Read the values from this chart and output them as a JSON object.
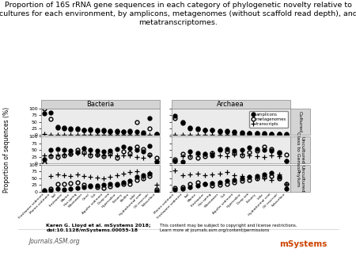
{
  "title": "Proportion of 16S rRNA gene sequences in each category of phylogenetic novelty relative to\ncultures for each environment, by amplicons, metagenomes (without scaffold read depth), and\nmetatranscriptomes.",
  "title_fontsize": 6.8,
  "ylabel": "Proportion of sequences (%)",
  "col_headers": [
    "Bacteria",
    "Archaea"
  ],
  "row_headers": [
    "Cultured",
    "Uncultured\nClass to Genus",
    "Uncultured\nPhylum"
  ],
  "ylim": [
    0,
    100
  ],
  "yticks": [
    0,
    25,
    50,
    75,
    100
  ],
  "bacteria_xtick_labels": [
    "Freshwater sediment",
    "Marine sediment",
    "Soil",
    "Freshwater",
    "Marine",
    "Hot spring",
    "Wastewater",
    "Coral",
    "Gut",
    "Aquifer sediment",
    "Deep sea",
    "Hypersaline",
    "Estuary",
    "Biofilm",
    "Lake",
    "Hydrothermal vent",
    "Oil reservoir",
    "Subsurface"
  ],
  "archaea_xtick_labels": [
    "Marine sediment",
    "Freshwater sediment",
    "Soil",
    "Marine",
    "Freshwater",
    "Hot spring",
    "Wastewater",
    "Gut",
    "Aquifer sediment",
    "Hypersaline",
    "Deep sea",
    "Estuary",
    "Lake",
    "Hydrothermal vent",
    "Oil reservoir",
    "Subsurface"
  ],
  "bacteria_cultured_amplicons": [
    82,
    85,
    27,
    25,
    24,
    22,
    20,
    20,
    18,
    17,
    15,
    14,
    14,
    13,
    12,
    10,
    65,
    5
  ],
  "bacteria_cultured_metagenomes": [
    100,
    62,
    30,
    28,
    22,
    25,
    18,
    22,
    16,
    19,
    13,
    16,
    12,
    15,
    50,
    8,
    25,
    4
  ],
  "bacteria_cultured_transcripts": [
    3,
    2,
    2,
    2,
    2,
    2,
    2,
    2,
    2,
    2,
    2,
    2,
    2,
    2,
    2,
    2,
    2,
    2
  ],
  "bacteria_uncultured_cg_amplicons": [
    15,
    50,
    55,
    52,
    48,
    42,
    58,
    52,
    48,
    45,
    48,
    55,
    62,
    58,
    50,
    44,
    65,
    5
  ],
  "bacteria_uncultured_cg_metagenomes": [
    0,
    28,
    25,
    30,
    35,
    50,
    42,
    30,
    32,
    28,
    38,
    22,
    45,
    40,
    62,
    55,
    32,
    22
  ],
  "bacteria_uncultured_cg_transcripts": [
    30,
    30,
    32,
    32,
    35,
    38,
    35,
    35,
    32,
    30,
    30,
    30,
    30,
    30,
    25,
    22,
    30,
    8
  ],
  "bacteria_uncultured_p_amplicons": [
    2,
    5,
    10,
    8,
    12,
    15,
    18,
    20,
    22,
    25,
    28,
    30,
    35,
    40,
    55,
    62,
    68,
    2
  ],
  "bacteria_uncultured_p_metagenomes": [
    5,
    10,
    30,
    28,
    32,
    35,
    25,
    22,
    18,
    15,
    20,
    25,
    28,
    30,
    45,
    50,
    60,
    8
  ],
  "bacteria_uncultured_p_transcripts": [
    5,
    60,
    65,
    62,
    60,
    65,
    58,
    55,
    52,
    50,
    55,
    62,
    68,
    72,
    75,
    55,
    70,
    25
  ],
  "archaea_cultured_amplicons": [
    72,
    50,
    25,
    22,
    20,
    18,
    16,
    15,
    12,
    10,
    8,
    8,
    6,
    5,
    5,
    3
  ],
  "archaea_cultured_metagenomes": [
    65,
    45,
    28,
    25,
    18,
    20,
    14,
    12,
    10,
    8,
    6,
    7,
    5,
    4,
    4,
    2
  ],
  "archaea_cultured_transcripts": [
    2,
    2,
    2,
    2,
    2,
    2,
    2,
    2,
    2,
    2,
    2,
    2,
    2,
    2,
    2,
    2
  ],
  "archaea_uncultured_cg_amplicons": [
    10,
    5,
    45,
    40,
    35,
    30,
    50,
    55,
    48,
    52,
    60,
    55,
    50,
    48,
    42,
    8
  ],
  "archaea_uncultured_cg_metagenomes": [
    15,
    35,
    25,
    22,
    28,
    40,
    55,
    45,
    38,
    30,
    42,
    48,
    62,
    55,
    40,
    32
  ],
  "archaea_uncultured_cg_transcripts": [
    10,
    28,
    30,
    32,
    35,
    38,
    30,
    28,
    32,
    35,
    30,
    28,
    25,
    30,
    28,
    10
  ],
  "archaea_uncultured_p_amplicons": [
    8,
    12,
    18,
    22,
    28,
    32,
    35,
    40,
    45,
    50,
    55,
    60,
    65,
    70,
    55,
    12
  ],
  "archaea_uncultured_p_metagenomes": [
    15,
    18,
    30,
    35,
    28,
    22,
    25,
    30,
    35,
    40,
    45,
    50,
    55,
    60,
    50,
    30
  ],
  "archaea_uncultured_p_transcripts": [
    80,
    62,
    65,
    68,
    62,
    65,
    68,
    72,
    62,
    58,
    55,
    52,
    50,
    45,
    65,
    30
  ],
  "markersize": 3.5,
  "bg_color": "#ebebeb",
  "footer_bold": "Karen G. Lloyd et al. mSystems 2018;\ndoi:10.1128/mSystems.00055-18",
  "footer_normal": "This content may be subject to copyright and license restrictions.\nLearn more at journals.asm.org/content/permissions",
  "asm_text": "Journals.ASM.org",
  "msystems_text": "mSystems"
}
